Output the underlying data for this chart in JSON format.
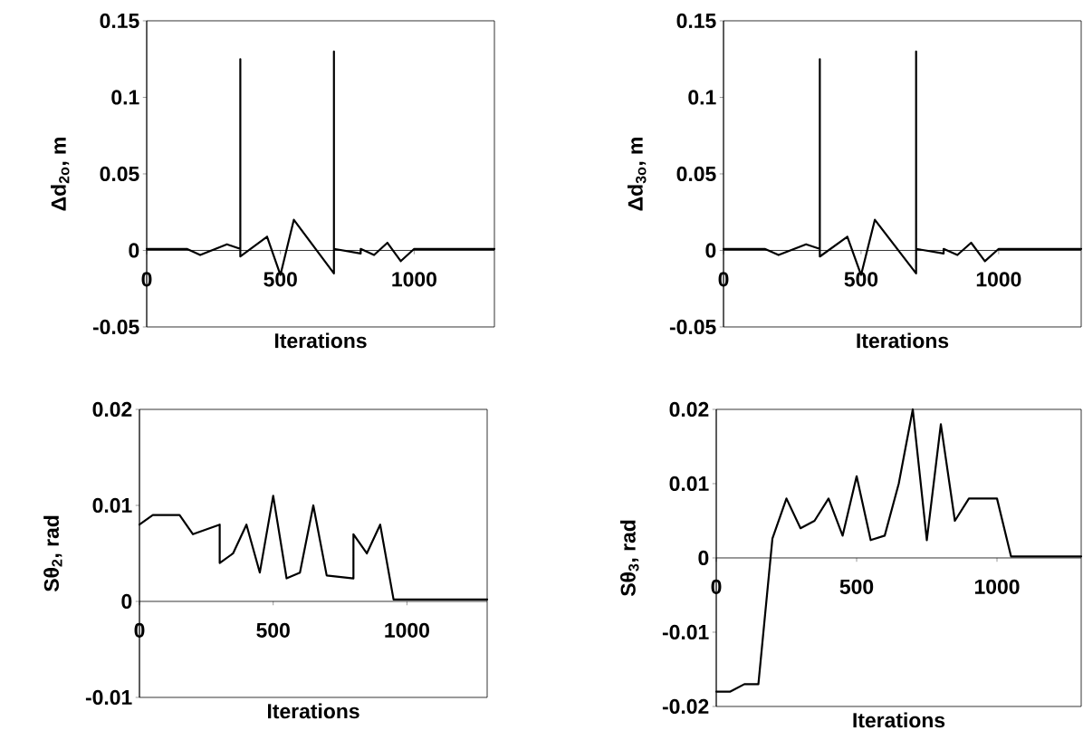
{
  "chart_data": [
    {
      "type": "line",
      "xlabel": "Iterations",
      "ylabel": "Δd$_{2o}$, m",
      "xlim": [
        0,
        1300
      ],
      "xticks": [
        0,
        500,
        1000
      ],
      "ylim": [
        -0.05,
        0.15
      ],
      "yticks": [
        -0.05,
        0,
        0.05,
        0.1,
        0.15
      ],
      "color": "#000000",
      "x": [
        0,
        150,
        200,
        300,
        350,
        350,
        350,
        450,
        500,
        550,
        700,
        700,
        700,
        800,
        800,
        850,
        900,
        950,
        1000,
        1300
      ],
      "values": [
        0.001,
        0.001,
        -0.003,
        0.004,
        0.001,
        0.125,
        -0.004,
        0.009,
        -0.016,
        0.02,
        -0.015,
        0.13,
        0.001,
        -0.002,
        0.001,
        -0.003,
        0.005,
        -0.007,
        0.001,
        0.001
      ]
    },
    {
      "type": "line",
      "xlabel": "Iterations",
      "ylabel": "Δd$_{3o}$, m",
      "xlim": [
        0,
        1300
      ],
      "xticks": [
        0,
        500,
        1000
      ],
      "ylim": [
        -0.05,
        0.15
      ],
      "yticks": [
        -0.05,
        0,
        0.05,
        0.1,
        0.15
      ],
      "color": "#000000",
      "x": [
        0,
        150,
        200,
        300,
        350,
        350,
        350,
        450,
        500,
        550,
        700,
        700,
        700,
        800,
        800,
        850,
        900,
        950,
        1000,
        1300
      ],
      "values": [
        0.001,
        0.001,
        -0.003,
        0.004,
        0.001,
        0.125,
        -0.004,
        0.009,
        -0.016,
        0.02,
        -0.015,
        0.13,
        0.001,
        -0.002,
        0.001,
        -0.003,
        0.005,
        -0.007,
        0.001,
        0.001
      ]
    },
    {
      "type": "line",
      "xlabel": "Iterations",
      "ylabel": "Sθ$_{2}$, rad",
      "xlim": [
        0,
        1300
      ],
      "xticks": [
        0,
        500,
        1000
      ],
      "ylim": [
        -0.01,
        0.02
      ],
      "yticks": [
        -0.01,
        0,
        0.01,
        0.02
      ],
      "color": "#000000",
      "x": [
        0,
        50,
        150,
        200,
        300,
        300,
        350,
        400,
        450,
        500,
        550,
        600,
        650,
        700,
        800,
        800,
        850,
        900,
        950,
        1300
      ],
      "values": [
        0.008,
        0.009,
        0.009,
        0.007,
        0.008,
        0.004,
        0.005,
        0.008,
        0.003,
        0.011,
        0.0024,
        0.003,
        0.01,
        0.0027,
        0.0024,
        0.007,
        0.005,
        0.008,
        0.0002,
        0.0002
      ]
    },
    {
      "type": "line",
      "xlabel": "Iterations",
      "ylabel": "Sθ$_{3}$, rad",
      "xlim": [
        0,
        1300
      ],
      "xticks": [
        0,
        500,
        1000
      ],
      "ylim": [
        -0.02,
        0.02
      ],
      "yticks": [
        -0.02,
        -0.01,
        0,
        0.01,
        0.02
      ],
      "color": "#000000",
      "x": [
        0,
        50,
        100,
        150,
        200,
        250,
        300,
        350,
        400,
        450,
        500,
        550,
        600,
        650,
        700,
        750,
        800,
        850,
        900,
        1000,
        1050,
        1300
      ],
      "values": [
        -0.018,
        -0.018,
        -0.017,
        -0.017,
        0.0026,
        0.008,
        0.004,
        0.005,
        0.008,
        0.003,
        0.011,
        0.0024,
        0.003,
        0.01,
        0.02,
        0.0024,
        0.018,
        0.005,
        0.008,
        0.008,
        0.0002,
        0.0002
      ]
    }
  ]
}
